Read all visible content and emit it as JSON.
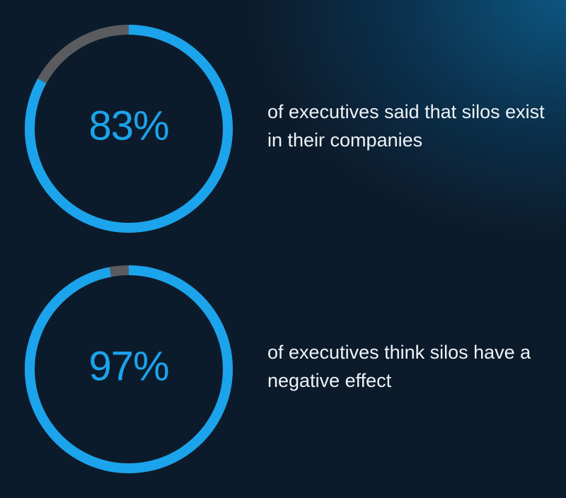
{
  "chart_data": [
    {
      "type": "donut",
      "values": [
        83
      ],
      "value_labels": [
        "83%"
      ],
      "color": "#1ba4ec",
      "track_color": "#5a5c60",
      "caption": "of executives said that silos exist in their companies"
    },
    {
      "type": "donut",
      "values": [
        97
      ],
      "value_labels": [
        "97%"
      ],
      "color": "#1ba4ec",
      "track_color": "#5a5c60",
      "caption": "of executives think silos have a negative effect"
    }
  ]
}
